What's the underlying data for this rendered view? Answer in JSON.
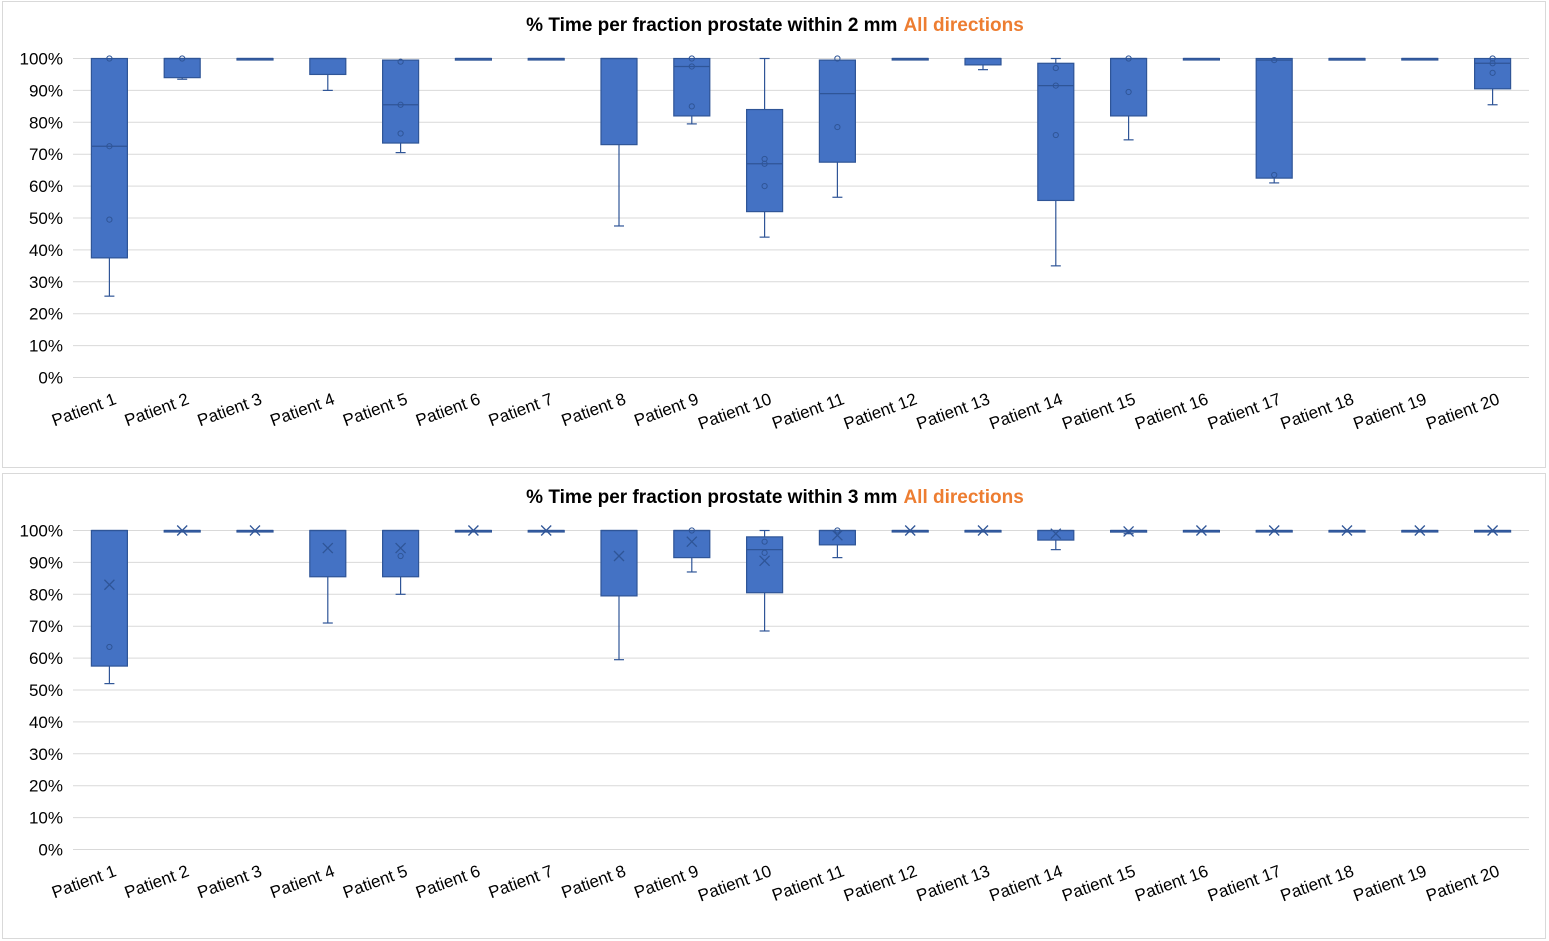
{
  "colors": {
    "box_fill": "#4472C4",
    "box_stroke": "#2F5597",
    "grid": "#D9D9D9",
    "title_accent": "#ED7D31"
  },
  "chart_data": [
    {
      "type": "box",
      "title": "% Time per fraction prostate within 2 mm",
      "title_suffix": "All directions",
      "xlabel": "",
      "ylabel": "",
      "ylim": [
        0,
        100
      ],
      "yticks": [
        "0%",
        "10%",
        "20%",
        "30%",
        "40%",
        "50%",
        "60%",
        "70%",
        "80%",
        "90%",
        "100%"
      ],
      "grid": true,
      "legend": "none",
      "categories": [
        "Patient 1",
        "Patient 2",
        "Patient 3",
        "Patient 4",
        "Patient 5",
        "Patient 6",
        "Patient 7",
        "Patient 8",
        "Patient 9",
        "Patient 10",
        "Patient 11",
        "Patient 12",
        "Patient 13",
        "Patient 14",
        "Patient 15",
        "Patient 16",
        "Patient 17",
        "Patient 18",
        "Patient 19",
        "Patient 20"
      ],
      "boxes": [
        {
          "min": 25.5,
          "q1": 37.5,
          "median": 72.5,
          "q3": 100,
          "max": 100,
          "mean": null,
          "points": [
            49.5,
            72.5,
            100
          ]
        },
        {
          "min": 93.5,
          "q1": 94,
          "median": 100,
          "q3": 100,
          "max": 100,
          "mean": null,
          "points": [
            100
          ]
        },
        {
          "min": 100,
          "q1": 100,
          "median": 100,
          "q3": 100,
          "max": 100,
          "mean": null,
          "points": []
        },
        {
          "min": 90,
          "q1": 95,
          "median": 100,
          "q3": 100,
          "max": 100,
          "mean": null,
          "points": []
        },
        {
          "min": 70.5,
          "q1": 73.5,
          "median": 85.5,
          "q3": 99.5,
          "max": 99.5,
          "mean": null,
          "points": [
            76.5,
            85.5,
            99
          ]
        },
        {
          "min": 99.5,
          "q1": 99.5,
          "median": 100,
          "q3": 100,
          "max": 100,
          "mean": null,
          "points": []
        },
        {
          "min": 100,
          "q1": 100,
          "median": 100,
          "q3": 100,
          "max": 100,
          "mean": null,
          "points": []
        },
        {
          "min": 47.5,
          "q1": 73,
          "median": 100,
          "q3": 100,
          "max": 100,
          "mean": null,
          "points": []
        },
        {
          "min": 79.5,
          "q1": 82,
          "median": 97.5,
          "q3": 100,
          "max": 100,
          "mean": null,
          "points": [
            85,
            97.5,
            100
          ]
        },
        {
          "min": 44,
          "q1": 52,
          "median": 67,
          "q3": 84,
          "max": 100,
          "mean": null,
          "points": [
            60,
            67,
            68.5
          ]
        },
        {
          "min": 56.5,
          "q1": 67.5,
          "median": 89,
          "q3": 99.5,
          "max": 99.5,
          "mean": null,
          "points": [
            78.5,
            100
          ]
        },
        {
          "min": 100,
          "q1": 100,
          "median": 100,
          "q3": 100,
          "max": 100,
          "mean": null,
          "points": []
        },
        {
          "min": 96.5,
          "q1": 98,
          "median": 100,
          "q3": 100,
          "max": 100,
          "mean": null,
          "points": []
        },
        {
          "min": 35,
          "q1": 55.5,
          "median": 91.5,
          "q3": 98.5,
          "max": 100,
          "mean": null,
          "points": [
            76,
            91.5,
            97
          ]
        },
        {
          "min": 74.5,
          "q1": 82,
          "median": 100,
          "q3": 100,
          "max": 100,
          "mean": null,
          "points": [
            89.5,
            100
          ]
        },
        {
          "min": 100,
          "q1": 100,
          "median": 100,
          "q3": 100,
          "max": 100,
          "mean": null,
          "points": []
        },
        {
          "min": 61,
          "q1": 62.5,
          "median": 99.5,
          "q3": 100,
          "max": 100,
          "mean": null,
          "points": [
            63.5,
            99.5
          ]
        },
        {
          "min": 99.5,
          "q1": 99.5,
          "median": 100,
          "q3": 100,
          "max": 100,
          "mean": null,
          "points": []
        },
        {
          "min": 100,
          "q1": 100,
          "median": 100,
          "q3": 100,
          "max": 100,
          "mean": null,
          "points": []
        },
        {
          "min": 85.5,
          "q1": 90.5,
          "median": 98.5,
          "q3": 100,
          "max": 100,
          "mean": null,
          "points": [
            95.5,
            98.5,
            100
          ]
        }
      ]
    },
    {
      "type": "box",
      "title": "% Time per fraction prostate within 3 mm",
      "title_suffix": "All directions",
      "xlabel": "",
      "ylabel": "",
      "ylim": [
        0,
        100
      ],
      "yticks": [
        "0%",
        "10%",
        "20%",
        "30%",
        "40%",
        "50%",
        "60%",
        "70%",
        "80%",
        "90%",
        "100%"
      ],
      "grid": true,
      "legend": "none",
      "categories": [
        "Patient 1",
        "Patient 2",
        "Patient 3",
        "Patient 4",
        "Patient 5",
        "Patient 6",
        "Patient 7",
        "Patient 8",
        "Patient 9",
        "Patient 10",
        "Patient 11",
        "Patient 12",
        "Patient 13",
        "Patient 14",
        "Patient 15",
        "Patient 16",
        "Patient 17",
        "Patient 18",
        "Patient 19",
        "Patient 20"
      ],
      "boxes": [
        {
          "min": 52,
          "q1": 57.5,
          "median": 100,
          "q3": 100,
          "max": 100,
          "mean": 83,
          "points": [
            63.5
          ]
        },
        {
          "min": 100,
          "q1": 100,
          "median": 100,
          "q3": 100,
          "max": 100,
          "mean": 100,
          "points": []
        },
        {
          "min": 100,
          "q1": 100,
          "median": 100,
          "q3": 100,
          "max": 100,
          "mean": 100,
          "points": []
        },
        {
          "min": 71,
          "q1": 85.5,
          "median": 100,
          "q3": 100,
          "max": 100,
          "mean": 94.5,
          "points": []
        },
        {
          "min": 80,
          "q1": 85.5,
          "median": 100,
          "q3": 100,
          "max": 100,
          "mean": 94.5,
          "points": [
            92
          ]
        },
        {
          "min": 100,
          "q1": 100,
          "median": 100,
          "q3": 100,
          "max": 100,
          "mean": 100,
          "points": []
        },
        {
          "min": 100,
          "q1": 100,
          "median": 100,
          "q3": 100,
          "max": 100,
          "mean": 100,
          "points": []
        },
        {
          "min": 59.5,
          "q1": 79.5,
          "median": 100,
          "q3": 100,
          "max": 100,
          "mean": 92,
          "points": []
        },
        {
          "min": 87,
          "q1": 91.5,
          "median": 100,
          "q3": 100,
          "max": 100,
          "mean": 96.5,
          "points": [
            100
          ]
        },
        {
          "min": 68.5,
          "q1": 80.5,
          "median": 94,
          "q3": 98,
          "max": 100,
          "mean": 90.5,
          "points": [
            93,
            96.5
          ]
        },
        {
          "min": 91.5,
          "q1": 95.5,
          "median": 100,
          "q3": 100,
          "max": 100,
          "mean": 98.5,
          "points": [
            100
          ]
        },
        {
          "min": 100,
          "q1": 100,
          "median": 100,
          "q3": 100,
          "max": 100,
          "mean": 100,
          "points": []
        },
        {
          "min": 100,
          "q1": 100,
          "median": 100,
          "q3": 100,
          "max": 100,
          "mean": 100,
          "points": []
        },
        {
          "min": 94,
          "q1": 97,
          "median": 100,
          "q3": 100,
          "max": 100,
          "mean": 99,
          "points": []
        },
        {
          "min": 99,
          "q1": 99.5,
          "median": 100,
          "q3": 100,
          "max": 100,
          "mean": 99.7,
          "points": []
        },
        {
          "min": 100,
          "q1": 100,
          "median": 100,
          "q3": 100,
          "max": 100,
          "mean": 100,
          "points": []
        },
        {
          "min": 100,
          "q1": 100,
          "median": 100,
          "q3": 100,
          "max": 100,
          "mean": 100,
          "points": []
        },
        {
          "min": 100,
          "q1": 100,
          "median": 100,
          "q3": 100,
          "max": 100,
          "mean": 100,
          "points": []
        },
        {
          "min": 100,
          "q1": 100,
          "median": 100,
          "q3": 100,
          "max": 100,
          "mean": 100,
          "points": []
        },
        {
          "min": 100,
          "q1": 100,
          "median": 100,
          "q3": 100,
          "max": 100,
          "mean": 100,
          "points": []
        }
      ]
    }
  ]
}
